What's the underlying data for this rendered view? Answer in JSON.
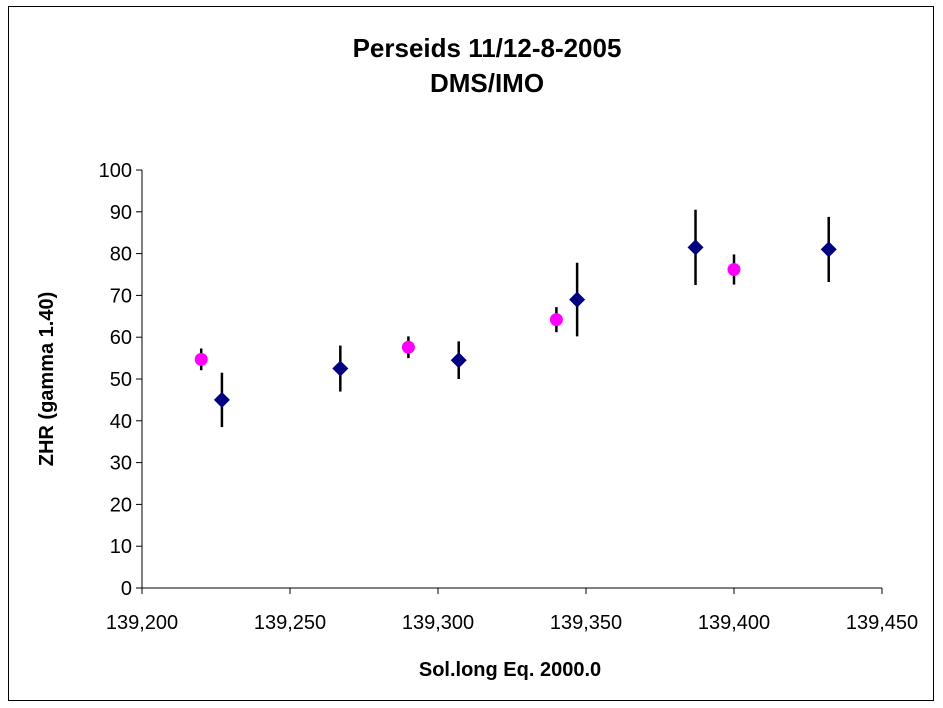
{
  "chart_data": {
    "type": "scatter",
    "title": "Perseids 11/12-8-2005",
    "subtitle": "DMS/IMO",
    "xlabel": "Sol.long Eq. 2000.0",
    "ylabel": "ZHR (gamma 1.40)",
    "xlim": [
      139.2,
      139.45
    ],
    "ylim": [
      0,
      100
    ],
    "x_ticks": [
      139.2,
      139.25,
      139.3,
      139.35,
      139.4,
      139.45
    ],
    "x_tick_labels": [
      "139,200",
      "139,250",
      "139,300",
      "139,350",
      "139,400",
      "139,450"
    ],
    "y_ticks": [
      0,
      10,
      20,
      30,
      40,
      50,
      60,
      70,
      80,
      90,
      100
    ],
    "y_tick_labels": [
      "0",
      "10",
      "20",
      "30",
      "40",
      "50",
      "60",
      "70",
      "80",
      "90",
      "100"
    ],
    "grid": false,
    "legend": "none",
    "series": [
      {
        "marker": "diamond",
        "color": "#000080",
        "points": [
          {
            "x": 139.227,
            "y": 45,
            "err": 6.5
          },
          {
            "x": 139.267,
            "y": 52.5,
            "err": 5.5
          },
          {
            "x": 139.307,
            "y": 54.5,
            "err": 4.5
          },
          {
            "x": 139.347,
            "y": 69,
            "err": 8.8
          },
          {
            "x": 139.387,
            "y": 81.5,
            "err": 9
          },
          {
            "x": 139.432,
            "y": 81,
            "err": 7.8
          }
        ]
      },
      {
        "marker": "circle",
        "color": "#ff00ff",
        "points": [
          {
            "x": 139.22,
            "y": 54.7,
            "err": 2.6
          },
          {
            "x": 139.29,
            "y": 57.6,
            "err": 2.6
          },
          {
            "x": 139.34,
            "y": 64.2,
            "err": 3
          },
          {
            "x": 139.4,
            "y": 76.2,
            "err": 3.6
          }
        ]
      }
    ]
  }
}
